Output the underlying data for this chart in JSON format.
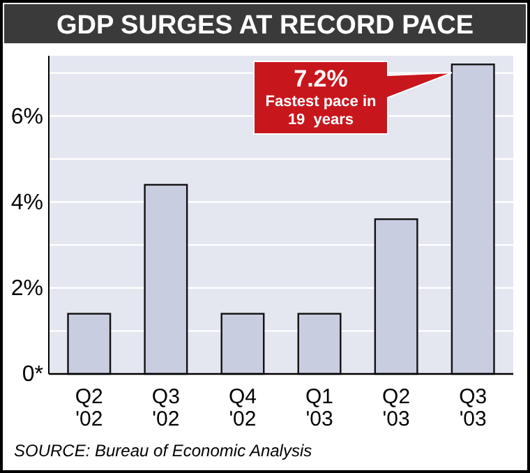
{
  "chart_data": {
    "type": "bar",
    "title": "GDP SURGES AT RECORD PACE",
    "categories": [
      "Q2 '02",
      "Q3 '02",
      "Q4 '02",
      "Q1 '03",
      "Q2 '03",
      "Q3 '03"
    ],
    "values": [
      1.4,
      4.4,
      1.4,
      1.4,
      3.6,
      7.2
    ],
    "color": "#c9cde0",
    "ylim": [
      0,
      7.4
    ],
    "yticks": [
      {
        "value": 0,
        "label": "0*"
      },
      {
        "value": 1,
        "label": null
      },
      {
        "value": 2,
        "label": "2%"
      },
      {
        "value": 3,
        "label": null
      },
      {
        "value": 4,
        "label": "4%"
      },
      {
        "value": 5,
        "label": null
      },
      {
        "value": 6,
        "label": "6%"
      },
      {
        "value": 7,
        "label": null
      }
    ],
    "grid": "y",
    "annotations": [
      "7.2%",
      "Fastest pace in 19  years",
      "SOURCE: Bureau of Economic Analysis"
    ]
  }
}
